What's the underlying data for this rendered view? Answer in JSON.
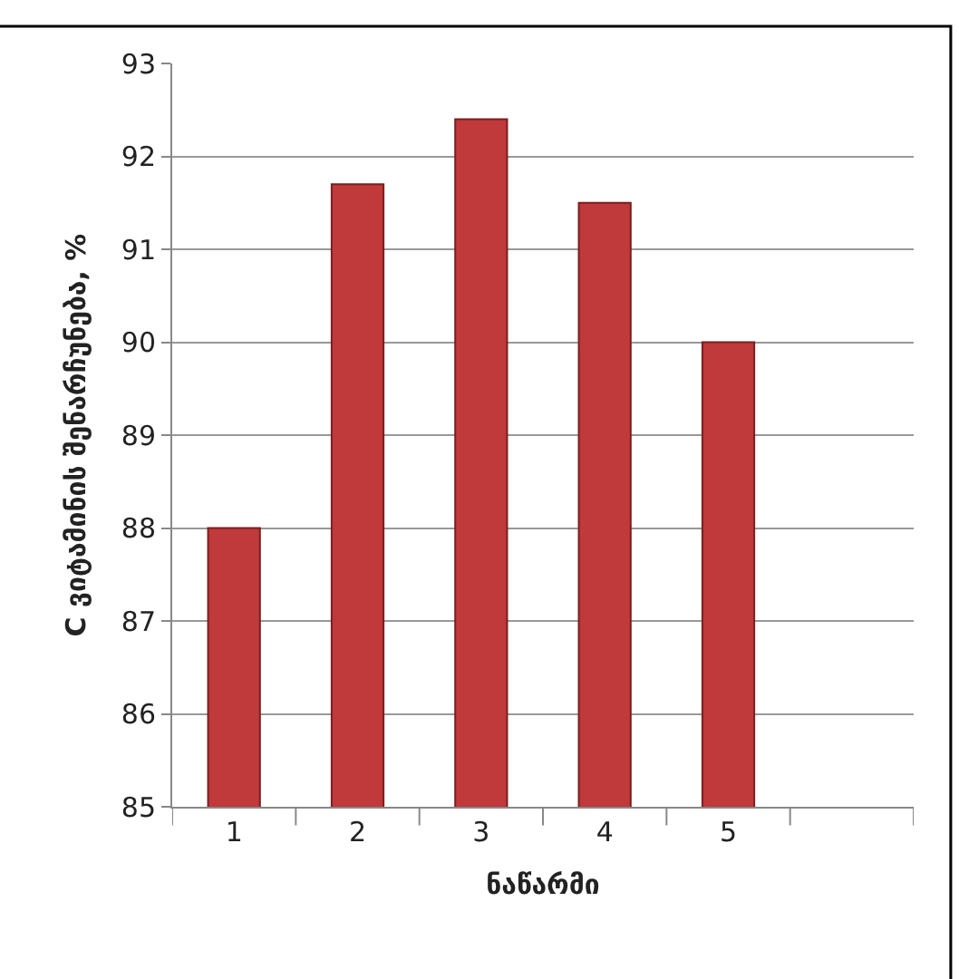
{
  "chart_data": {
    "type": "bar",
    "xlabel": "ნაწარმი",
    "ylabel": "C ვიტამინის შენარჩუნება, %",
    "categories": [
      "1",
      "2",
      "3",
      "4",
      "5",
      null
    ],
    "values": [
      88.0,
      91.7,
      92.4,
      91.5,
      90.0,
      null
    ],
    "color": "#c0393b",
    "ylim": [
      85,
      93
    ],
    "yticks": [
      85,
      86,
      87,
      88,
      89,
      90,
      91,
      92,
      93
    ],
    "grid": "y",
    "legend": false
  }
}
